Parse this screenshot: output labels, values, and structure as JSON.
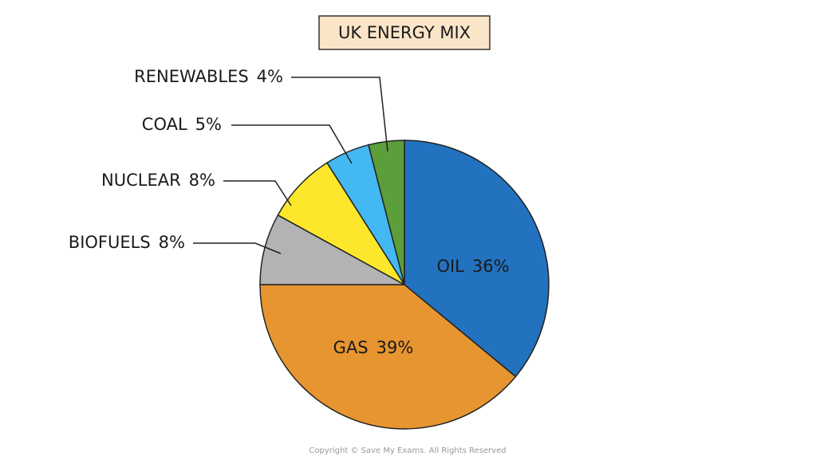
{
  "chart_data": {
    "type": "pie",
    "title": "UK ENERGY MIX",
    "categories": [
      "OIL",
      "GAS",
      "BIOFUELS",
      "NUCLEAR",
      "COAL",
      "RENEWABLES"
    ],
    "values": [
      36,
      39,
      8,
      8,
      5,
      4
    ],
    "value_labels": [
      "36%",
      "39%",
      "8%",
      "8%",
      "5%",
      "4%"
    ],
    "colors": [
      "#2272bf",
      "#e69530",
      "#b3b3b3",
      "#fde72c",
      "#44b8f2",
      "#5c9e3a"
    ]
  },
  "footer": "Copyright © Save My Exams. All Rights Reserved"
}
